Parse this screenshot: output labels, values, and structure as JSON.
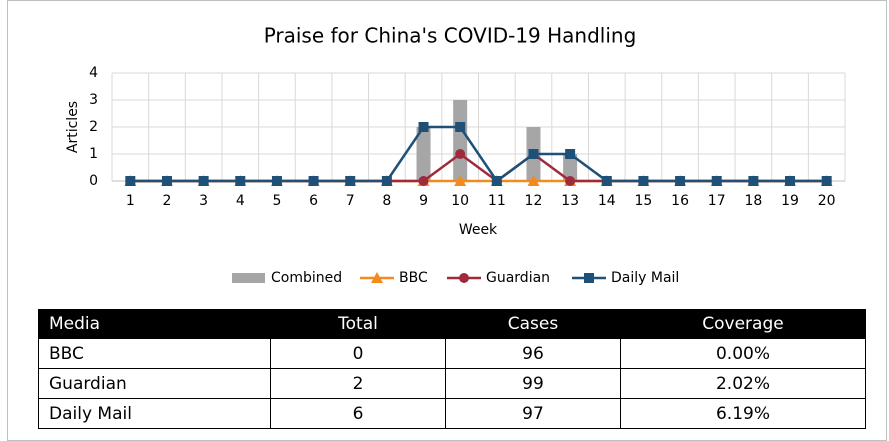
{
  "chart_data": {
    "type": "bar_line",
    "title": "Praise for China's COVID-19 Handling",
    "x_label": "Week",
    "y_label": "Articles",
    "categories": [
      "1",
      "2",
      "3",
      "4",
      "5",
      "6",
      "7",
      "8",
      "9",
      "10",
      "11",
      "12",
      "13",
      "14",
      "15",
      "16",
      "17",
      "18",
      "19",
      "20"
    ],
    "series": [
      {
        "name": "Combined",
        "type": "bar",
        "color": "#a6a6a6",
        "values": [
          0,
          0,
          0,
          0,
          0,
          0,
          0,
          0,
          2,
          3,
          0,
          2,
          1,
          0,
          0,
          0,
          0,
          0,
          0,
          0
        ]
      },
      {
        "name": "BBC",
        "type": "line",
        "marker": "triangle",
        "color": "#f28a1e",
        "values": [
          0,
          0,
          0,
          0,
          0,
          0,
          0,
          0,
          0,
          0,
          0,
          0,
          0,
          0,
          0,
          0,
          0,
          0,
          0,
          0
        ]
      },
      {
        "name": "Guardian",
        "type": "line",
        "marker": "circle",
        "color": "#9e2a3c",
        "values": [
          0,
          0,
          0,
          0,
          0,
          0,
          0,
          0,
          0,
          1,
          0,
          1,
          0,
          0,
          0,
          0,
          0,
          0,
          0,
          0
        ]
      },
      {
        "name": "Daily Mail",
        "type": "line",
        "marker": "square",
        "color": "#1f5077",
        "values": [
          0,
          0,
          0,
          0,
          0,
          0,
          0,
          0,
          2,
          2,
          0,
          1,
          1,
          0,
          0,
          0,
          0,
          0,
          0,
          0
        ]
      }
    ],
    "ylim": [
      0,
      4
    ],
    "yticks": [
      0,
      1,
      2,
      3,
      4
    ],
    "grid": true,
    "legend": "bottom"
  },
  "table": {
    "header": [
      "Media",
      "Total",
      "Cases",
      "Coverage"
    ],
    "rows": [
      [
        "BBC",
        "0",
        "96",
        "0.00%"
      ],
      [
        "Guardian",
        "2",
        "99",
        "2.02%"
      ],
      [
        "Daily Mail",
        "6",
        "97",
        "6.19%"
      ]
    ]
  }
}
